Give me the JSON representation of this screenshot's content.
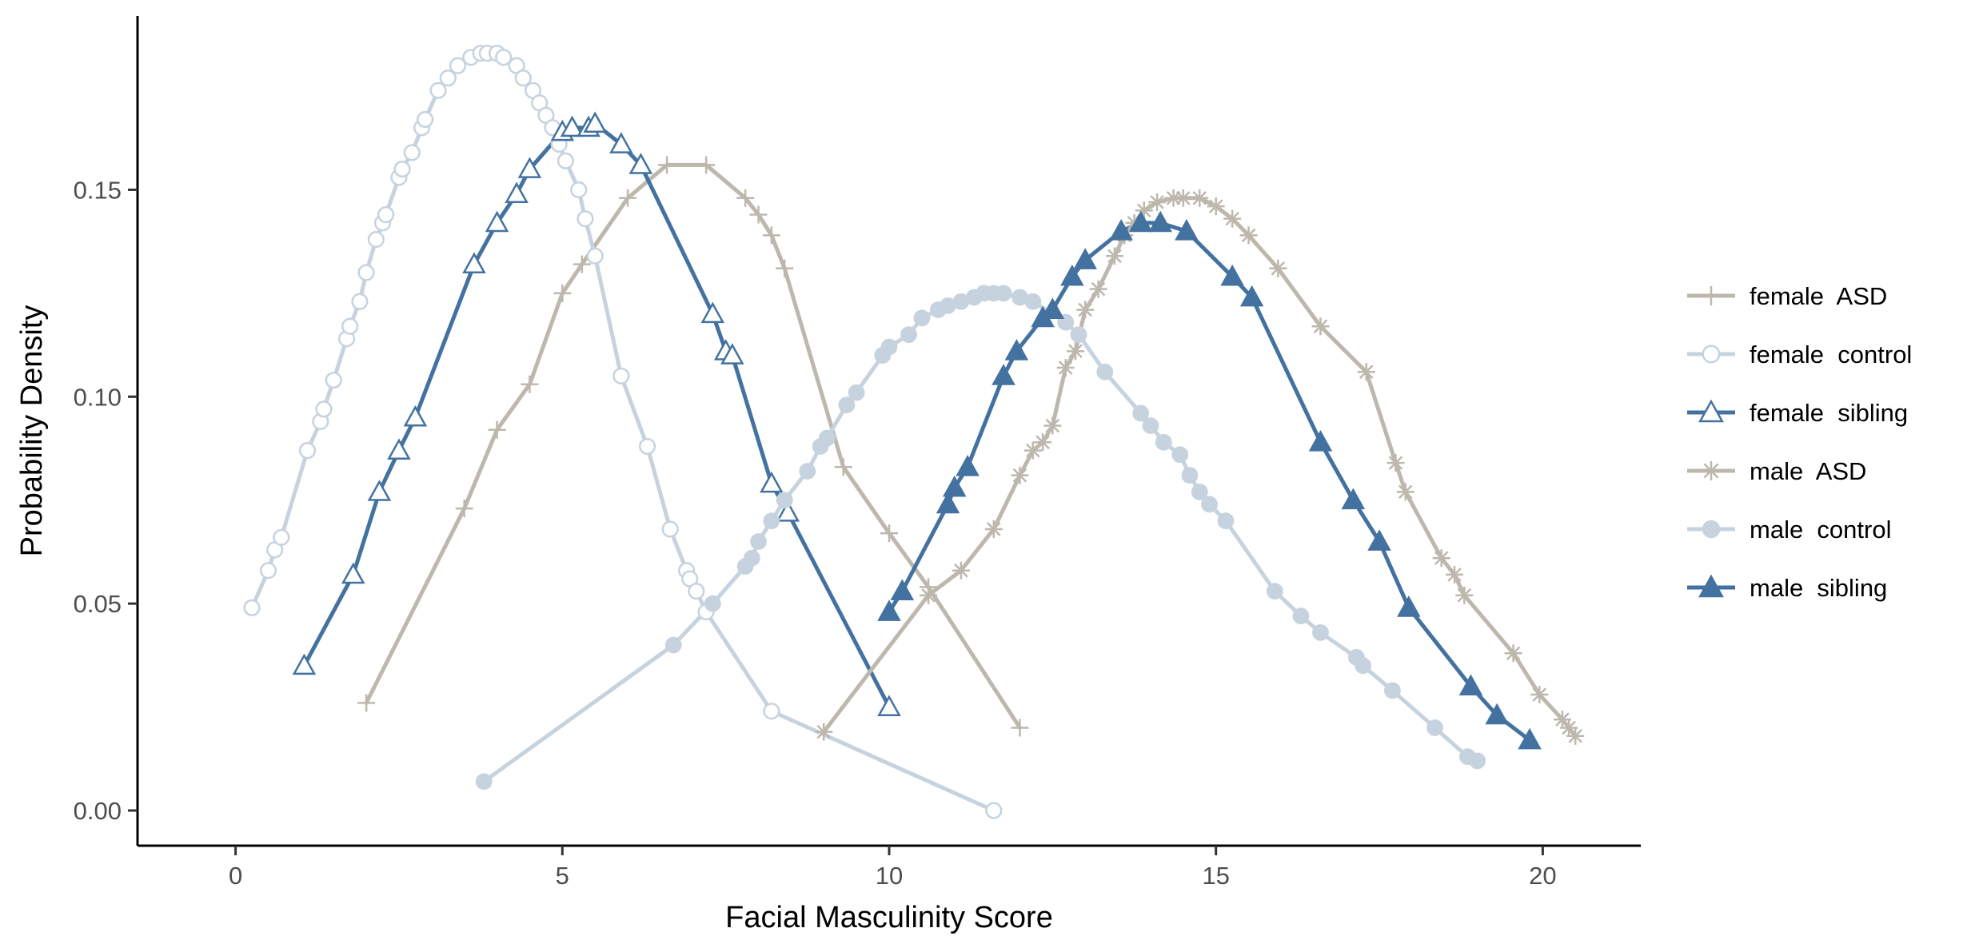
{
  "chart_data": {
    "type": "line",
    "title": "",
    "xlabel": "Facial Masculinity Score",
    "ylabel": "Probability Density",
    "xlim": [
      -1.5,
      21.5
    ],
    "ylim": [
      -0.0085,
      0.192
    ],
    "x_ticks": [
      0,
      5,
      10,
      15,
      20
    ],
    "x_tick_labels": [
      "0",
      "5",
      "10",
      "15",
      "20"
    ],
    "y_ticks": [
      0.0,
      0.05,
      0.1,
      0.15
    ],
    "y_tick_labels": [
      "0.00",
      "0.05",
      "0.10",
      "0.15"
    ],
    "grid": false,
    "legend_position": "right",
    "series": [
      {
        "name": "female  ASD",
        "color": "#bdb8ad",
        "marker": "plus",
        "points": [
          [
            2.0,
            0.026
          ],
          [
            3.5,
            0.073
          ],
          [
            4.0,
            0.092
          ],
          [
            4.5,
            0.103
          ],
          [
            5.0,
            0.125
          ],
          [
            5.3,
            0.132
          ],
          [
            6.0,
            0.148
          ],
          [
            6.6,
            0.156
          ],
          [
            7.2,
            0.156
          ],
          [
            7.8,
            0.148
          ],
          [
            8.0,
            0.144
          ],
          [
            8.2,
            0.139
          ],
          [
            8.4,
            0.131
          ],
          [
            9.3,
            0.083
          ],
          [
            10.0,
            0.067
          ],
          [
            10.6,
            0.054
          ],
          [
            12.0,
            0.02
          ]
        ]
      },
      {
        "name": "female  control",
        "color": "#c6d3df",
        "marker": "open-circle",
        "points": [
          [
            0.25,
            0.049
          ],
          [
            0.5,
            0.058
          ],
          [
            0.6,
            0.063
          ],
          [
            0.7,
            0.066
          ],
          [
            1.1,
            0.087
          ],
          [
            1.3,
            0.094
          ],
          [
            1.35,
            0.097
          ],
          [
            1.5,
            0.104
          ],
          [
            1.7,
            0.114
          ],
          [
            1.75,
            0.117
          ],
          [
            1.9,
            0.123
          ],
          [
            2.0,
            0.13
          ],
          [
            2.15,
            0.138
          ],
          [
            2.25,
            0.142
          ],
          [
            2.3,
            0.144
          ],
          [
            2.5,
            0.153
          ],
          [
            2.55,
            0.155
          ],
          [
            2.7,
            0.159
          ],
          [
            2.85,
            0.165
          ],
          [
            2.9,
            0.167
          ],
          [
            3.1,
            0.174
          ],
          [
            3.25,
            0.177
          ],
          [
            3.4,
            0.18
          ],
          [
            3.6,
            0.182
          ],
          [
            3.75,
            0.183
          ],
          [
            3.85,
            0.183
          ],
          [
            4.0,
            0.183
          ],
          [
            4.1,
            0.182
          ],
          [
            4.3,
            0.18
          ],
          [
            4.4,
            0.177
          ],
          [
            4.55,
            0.174
          ],
          [
            4.65,
            0.171
          ],
          [
            4.75,
            0.168
          ],
          [
            4.85,
            0.165
          ],
          [
            4.95,
            0.161
          ],
          [
            5.05,
            0.157
          ],
          [
            5.25,
            0.15
          ],
          [
            5.35,
            0.143
          ],
          [
            5.5,
            0.134
          ],
          [
            5.9,
            0.105
          ],
          [
            6.3,
            0.088
          ],
          [
            6.65,
            0.068
          ],
          [
            6.9,
            0.058
          ],
          [
            6.95,
            0.056
          ],
          [
            7.05,
            0.053
          ],
          [
            7.2,
            0.048
          ],
          [
            8.2,
            0.024
          ],
          [
            11.6,
            0.0
          ]
        ]
      },
      {
        "name": "female  sibling",
        "color": "#4472a0",
        "marker": "open-triangle",
        "points": [
          [
            1.05,
            0.035
          ],
          [
            1.8,
            0.057
          ],
          [
            2.2,
            0.077
          ],
          [
            2.5,
            0.087
          ],
          [
            2.75,
            0.095
          ],
          [
            3.65,
            0.132
          ],
          [
            4.0,
            0.142
          ],
          [
            4.3,
            0.149
          ],
          [
            4.5,
            0.155
          ],
          [
            5.0,
            0.164
          ],
          [
            5.15,
            0.165
          ],
          [
            5.4,
            0.165
          ],
          [
            5.5,
            0.166
          ],
          [
            5.9,
            0.161
          ],
          [
            6.2,
            0.156
          ],
          [
            7.3,
            0.12
          ],
          [
            7.5,
            0.111
          ],
          [
            7.6,
            0.11
          ],
          [
            8.2,
            0.079
          ],
          [
            8.45,
            0.072
          ],
          [
            10.0,
            0.025
          ]
        ]
      },
      {
        "name": "male  ASD",
        "color": "#bdb8ad",
        "marker": "star",
        "points": [
          [
            9.0,
            0.019
          ],
          [
            10.6,
            0.052
          ],
          [
            11.1,
            0.058
          ],
          [
            11.6,
            0.068
          ],
          [
            12.0,
            0.081
          ],
          [
            12.2,
            0.087
          ],
          [
            12.35,
            0.089
          ],
          [
            12.5,
            0.093
          ],
          [
            12.7,
            0.107
          ],
          [
            12.85,
            0.111
          ],
          [
            13.0,
            0.121
          ],
          [
            13.2,
            0.126
          ],
          [
            13.45,
            0.134
          ],
          [
            13.6,
            0.139
          ],
          [
            13.75,
            0.142
          ],
          [
            13.9,
            0.145
          ],
          [
            14.1,
            0.147
          ],
          [
            14.35,
            0.148
          ],
          [
            14.5,
            0.148
          ],
          [
            14.75,
            0.148
          ],
          [
            15.0,
            0.146
          ],
          [
            15.25,
            0.143
          ],
          [
            15.5,
            0.139
          ],
          [
            15.95,
            0.131
          ],
          [
            16.6,
            0.117
          ],
          [
            17.3,
            0.106
          ],
          [
            17.75,
            0.084
          ],
          [
            17.9,
            0.077
          ],
          [
            18.45,
            0.061
          ],
          [
            18.65,
            0.057
          ],
          [
            18.8,
            0.052
          ],
          [
            19.55,
            0.038
          ],
          [
            19.95,
            0.028
          ],
          [
            20.3,
            0.022
          ],
          [
            20.4,
            0.02
          ],
          [
            20.5,
            0.018
          ]
        ]
      },
      {
        "name": "male  control",
        "color": "#c6d3df",
        "marker": "filled-circle",
        "points": [
          [
            3.8,
            0.007
          ],
          [
            6.7,
            0.04
          ],
          [
            7.3,
            0.05
          ],
          [
            7.8,
            0.059
          ],
          [
            7.9,
            0.061
          ],
          [
            8.0,
            0.065
          ],
          [
            8.2,
            0.07
          ],
          [
            8.4,
            0.075
          ],
          [
            8.75,
            0.082
          ],
          [
            8.95,
            0.088
          ],
          [
            9.05,
            0.09
          ],
          [
            9.35,
            0.098
          ],
          [
            9.5,
            0.101
          ],
          [
            9.9,
            0.11
          ],
          [
            10.0,
            0.112
          ],
          [
            10.3,
            0.115
          ],
          [
            10.5,
            0.119
          ],
          [
            10.75,
            0.121
          ],
          [
            10.9,
            0.122
          ],
          [
            11.1,
            0.123
          ],
          [
            11.3,
            0.124
          ],
          [
            11.45,
            0.125
          ],
          [
            11.6,
            0.125
          ],
          [
            11.75,
            0.125
          ],
          [
            12.0,
            0.124
          ],
          [
            12.2,
            0.123
          ],
          [
            12.7,
            0.118
          ],
          [
            12.9,
            0.115
          ],
          [
            13.3,
            0.106
          ],
          [
            13.85,
            0.096
          ],
          [
            14.0,
            0.093
          ],
          [
            14.2,
            0.089
          ],
          [
            14.45,
            0.086
          ],
          [
            14.6,
            0.081
          ],
          [
            14.75,
            0.077
          ],
          [
            14.9,
            0.074
          ],
          [
            15.15,
            0.07
          ],
          [
            15.9,
            0.053
          ],
          [
            16.3,
            0.047
          ],
          [
            16.6,
            0.043
          ],
          [
            17.15,
            0.037
          ],
          [
            17.25,
            0.035
          ],
          [
            17.7,
            0.029
          ],
          [
            18.35,
            0.02
          ],
          [
            18.85,
            0.013
          ],
          [
            19.0,
            0.012
          ]
        ]
      },
      {
        "name": "male  sibling",
        "color": "#4472a0",
        "marker": "filled-triangle",
        "points": [
          [
            10.0,
            0.048
          ],
          [
            10.2,
            0.053
          ],
          [
            10.9,
            0.074
          ],
          [
            11.0,
            0.078
          ],
          [
            11.2,
            0.083
          ],
          [
            11.75,
            0.105
          ],
          [
            11.95,
            0.111
          ],
          [
            12.35,
            0.119
          ],
          [
            12.5,
            0.121
          ],
          [
            12.8,
            0.129
          ],
          [
            13.0,
            0.133
          ],
          [
            13.55,
            0.14
          ],
          [
            13.85,
            0.142
          ],
          [
            14.15,
            0.142
          ],
          [
            14.55,
            0.14
          ],
          [
            15.25,
            0.129
          ],
          [
            15.55,
            0.124
          ],
          [
            16.6,
            0.089
          ],
          [
            17.1,
            0.075
          ],
          [
            17.5,
            0.065
          ],
          [
            17.95,
            0.049
          ],
          [
            18.9,
            0.03
          ],
          [
            19.3,
            0.023
          ],
          [
            19.8,
            0.017
          ]
        ]
      }
    ]
  }
}
